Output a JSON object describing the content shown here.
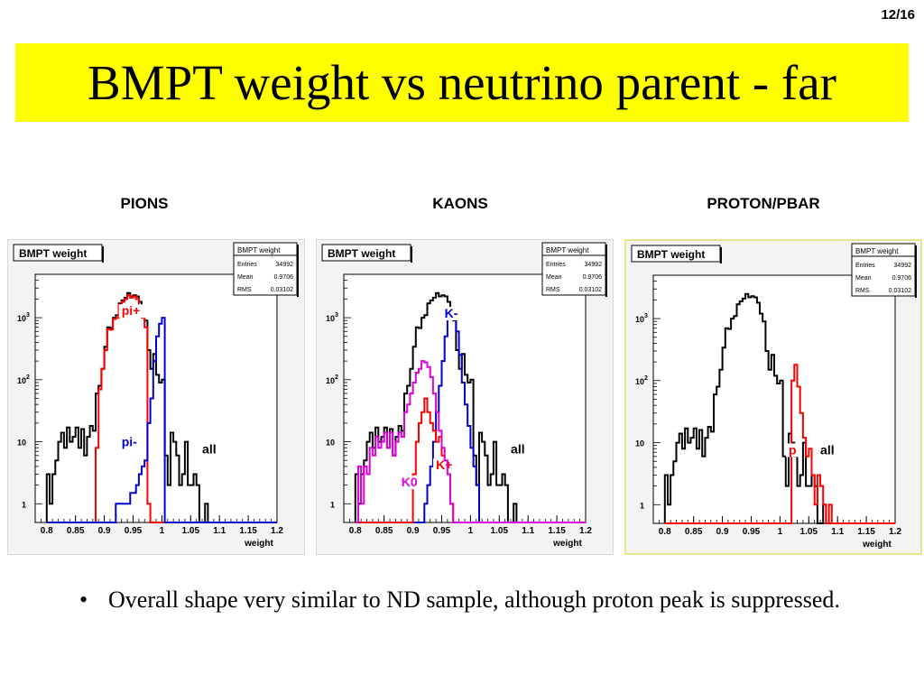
{
  "page": {
    "number": "12/16"
  },
  "title": "BMPT weight vs neutrino parent - far",
  "sections": [
    {
      "label": "PIONS"
    },
    {
      "label": "KAONS"
    },
    {
      "label": "PROTON/PBAR"
    }
  ],
  "bullet": {
    "mark": "•",
    "text": "Overall shape very similar to ND sample, although proton peak is suppressed."
  },
  "colors": {
    "all": "#000000",
    "pi_plus": "#ff0000",
    "pi_minus": "#0000cc",
    "k_minus": "#0000cc",
    "k_plus": "#ff0000",
    "k0": "#dd00dd",
    "p": "#ff0000",
    "title_bg": "#ffff00"
  },
  "chart_data": [
    {
      "type": "histogram",
      "title": "BMPT weight",
      "xlabel": "weight",
      "xlim": [
        0.78,
        1.2
      ],
      "ylim": [
        0.5,
        5000
      ],
      "yscale": "log",
      "xticks": [
        "0.8",
        "0.85",
        "0.9",
        "0.95",
        "1",
        "1.05",
        "1.1",
        "1.15",
        "1.2"
      ],
      "xtick_values": [
        0.8,
        0.85,
        0.9,
        0.95,
        1.0,
        1.05,
        1.1,
        1.15,
        1.2
      ],
      "yticks": [
        {
          "v": 1,
          "exp": ""
        },
        {
          "v": 10,
          "exp": ""
        },
        {
          "v": 100,
          "exp": "2"
        },
        {
          "v": 1000,
          "exp": "3"
        }
      ],
      "stats": {
        "name": "BMPT weight",
        "rows": [
          [
            "Entries",
            "34992"
          ],
          [
            "Mean",
            "0.9706"
          ],
          [
            "RMS",
            "0.03102"
          ]
        ]
      },
      "bin_start": 0.8,
      "bin_width": 0.005,
      "series": [
        {
          "name": "all",
          "label": "all",
          "color": "#000000",
          "label_at": [
            1.07,
            6.5
          ],
          "values": [
            3,
            1,
            3,
            5,
            10,
            14,
            8,
            17,
            10,
            12,
            17,
            8,
            16,
            6,
            12,
            18,
            15,
            60,
            80,
            150,
            340,
            700,
            680,
            1000,
            1100,
            1700,
            1900,
            2100,
            2500,
            2200,
            2300,
            2200,
            1800,
            1200,
            900,
            300,
            150,
            260,
            120,
            90,
            100,
            6,
            2,
            14,
            10,
            6,
            2,
            3,
            10,
            2,
            2,
            3,
            2,
            0,
            0,
            1,
            0,
            0,
            0,
            0,
            0,
            0,
            0,
            0,
            0,
            0,
            0,
            0,
            0,
            0,
            0,
            0,
            0,
            0,
            0,
            0,
            0,
            0,
            0,
            0,
            0,
            0
          ]
        },
        {
          "name": "pi+",
          "label": "pi+",
          "color": "#ff0000",
          "label_at": [
            0.93,
            1100
          ],
          "values": [
            0,
            0,
            0,
            0,
            0,
            0,
            0,
            0,
            0,
            0,
            0,
            0,
            0,
            0,
            0,
            0,
            0,
            8,
            70,
            150,
            300,
            650,
            640,
            950,
            1000,
            1600,
            1800,
            2000,
            2300,
            2100,
            2200,
            2000,
            1500,
            1000,
            700,
            1,
            0,
            0,
            0,
            0,
            0,
            0,
            0,
            0,
            0,
            0,
            0,
            0,
            0,
            0,
            0,
            0,
            0,
            0,
            0,
            0,
            0,
            0,
            0,
            0,
            0,
            0,
            0,
            0,
            0,
            0,
            0,
            0,
            0,
            0,
            0,
            0,
            0,
            0,
            0,
            0,
            0,
            0,
            0,
            0,
            0,
            0
          ]
        },
        {
          "name": "pi-",
          "label": "pi-",
          "color": "#0000cc",
          "label_at": [
            0.93,
            8.5
          ],
          "values": [
            0,
            0,
            0,
            0,
            0,
            0,
            0,
            0,
            0,
            0,
            0,
            0,
            0,
            0,
            0,
            0,
            0,
            0,
            0,
            0,
            0,
            0,
            0,
            0,
            1,
            1,
            1,
            1,
            1,
            1.5,
            1.5,
            2,
            3,
            4,
            5,
            20,
            50,
            200,
            500,
            800,
            1000,
            0,
            0,
            0,
            0,
            0,
            0,
            0,
            0,
            0,
            0,
            0,
            0,
            0,
            0,
            0,
            0,
            0,
            0,
            0,
            0,
            0,
            0,
            0,
            0,
            0,
            0,
            0,
            0,
            0,
            0,
            0,
            0,
            0,
            0,
            0,
            0,
            0,
            0,
            0,
            0,
            0,
            0,
            0
          ]
        }
      ]
    },
    {
      "type": "histogram",
      "title": "BMPT weight",
      "xlabel": "weight",
      "xlim": [
        0.78,
        1.2
      ],
      "ylim": [
        0.5,
        5000
      ],
      "yscale": "log",
      "xticks": [
        "0.8",
        "0.85",
        "0.9",
        "0.95",
        "1",
        "1.05",
        "1.1",
        "1.15",
        "1.2"
      ],
      "xtick_values": [
        0.8,
        0.85,
        0.9,
        0.95,
        1.0,
        1.05,
        1.1,
        1.15,
        1.2
      ],
      "yticks": [
        {
          "v": 1,
          "exp": ""
        },
        {
          "v": 10,
          "exp": ""
        },
        {
          "v": 100,
          "exp": "2"
        },
        {
          "v": 1000,
          "exp": "3"
        }
      ],
      "stats": {
        "name": "BMPT weight",
        "rows": [
          [
            "Entries",
            "34992"
          ],
          [
            "Mean",
            "0.9706"
          ],
          [
            "RMS",
            "0.03102"
          ]
        ]
      },
      "bin_start": 0.8,
      "bin_width": 0.005,
      "series": [
        {
          "name": "all",
          "label": "all",
          "color": "#000000",
          "label_at": [
            1.07,
            6.5
          ],
          "values": [
            3,
            1,
            3,
            5,
            10,
            14,
            8,
            17,
            10,
            12,
            17,
            8,
            16,
            6,
            12,
            18,
            15,
            60,
            80,
            150,
            340,
            700,
            680,
            1000,
            1100,
            1700,
            1900,
            2100,
            2500,
            2200,
            2300,
            2200,
            1800,
            1200,
            900,
            300,
            150,
            260,
            120,
            90,
            100,
            6,
            2,
            14,
            10,
            6,
            2,
            3,
            10,
            2,
            2,
            3,
            2,
            0,
            0,
            1,
            0,
            0,
            0,
            0,
            0,
            0,
            0,
            0,
            0,
            0,
            0,
            0,
            0,
            0,
            0,
            0,
            0,
            0,
            0,
            0,
            0,
            0,
            0,
            0,
            0,
            0,
            0
          ]
        },
        {
          "name": "K-",
          "label": "K-",
          "color": "#0000cc",
          "label_at": [
            0.955,
            1000
          ],
          "values": [
            0,
            0,
            0,
            0,
            0,
            0,
            0,
            0,
            0,
            0,
            0,
            0,
            0,
            0,
            0,
            0,
            0,
            0,
            0,
            0,
            0,
            0,
            0,
            0,
            1,
            2,
            4,
            10,
            30,
            80,
            200,
            500,
            1000,
            1300,
            1100,
            600,
            250,
            90,
            40,
            18,
            8,
            4,
            2,
            0,
            0,
            0,
            0,
            0,
            0,
            0,
            0,
            0,
            0,
            0,
            0,
            0,
            0,
            0,
            0,
            0,
            0,
            0,
            0,
            0,
            0,
            0,
            0,
            0,
            0,
            0,
            0,
            0,
            0,
            0,
            0,
            0,
            0,
            0,
            0,
            0,
            0,
            0
          ]
        },
        {
          "name": "K+",
          "label": "K+",
          "color": "#ff0000",
          "label_at": [
            0.94,
            3.6
          ],
          "values": [
            0,
            0,
            0,
            0,
            0,
            0,
            0,
            0,
            0,
            0,
            0,
            0,
            0,
            0,
            0,
            0,
            0,
            0,
            0,
            0,
            3,
            10,
            20,
            30,
            50,
            30,
            20,
            15,
            10,
            12,
            6,
            4,
            3,
            1,
            0,
            0,
            0,
            0,
            0,
            0,
            0,
            0,
            0,
            0,
            0,
            0,
            0,
            0,
            0,
            0,
            0,
            0,
            0,
            0,
            0,
            0,
            0,
            0,
            0,
            0,
            0,
            0,
            0,
            0,
            0,
            0,
            0,
            0,
            0,
            0,
            0,
            0,
            0,
            0,
            0,
            0,
            0,
            0,
            0,
            0,
            0,
            0
          ]
        },
        {
          "name": "K0",
          "label": "K0",
          "color": "#dd00dd",
          "label_at": [
            0.88,
            1.9
          ],
          "values": [
            0,
            4,
            1,
            4,
            3,
            8,
            6,
            12,
            8,
            10,
            14,
            8,
            14,
            6,
            10,
            14,
            12,
            30,
            40,
            60,
            90,
            130,
            150,
            200,
            190,
            160,
            110,
            60,
            30,
            15,
            8,
            5,
            3,
            1,
            0,
            0,
            0,
            0,
            0,
            0,
            0,
            0,
            0,
            0,
            0,
            0,
            0,
            0,
            0,
            0,
            0,
            0,
            0,
            0,
            0,
            0,
            0,
            0,
            0,
            0,
            0,
            0,
            0,
            0,
            0,
            0,
            0,
            0,
            0,
            0,
            0,
            0,
            0,
            0,
            0,
            0,
            0,
            0,
            0,
            0,
            0,
            0
          ]
        }
      ]
    },
    {
      "type": "histogram",
      "title": "BMPT weight",
      "xlabel": "weight",
      "xlim": [
        0.78,
        1.2
      ],
      "ylim": [
        0.5,
        5000
      ],
      "yscale": "log",
      "xticks": [
        "0.8",
        "0.85",
        "0.9",
        "0.95",
        "1",
        "1.05",
        "1.1",
        "1.15",
        "1.2"
      ],
      "xtick_values": [
        0.8,
        0.85,
        0.9,
        0.95,
        1.0,
        1.05,
        1.1,
        1.15,
        1.2
      ],
      "yticks": [
        {
          "v": 1,
          "exp": ""
        },
        {
          "v": 10,
          "exp": ""
        },
        {
          "v": 100,
          "exp": "2"
        },
        {
          "v": 1000,
          "exp": "3"
        }
      ],
      "stats": {
        "name": "BMPT weight",
        "rows": [
          [
            "Entries",
            "34992"
          ],
          [
            "Mean",
            "0.9706"
          ],
          [
            "RMS",
            "0.03102"
          ]
        ]
      },
      "bin_start": 0.8,
      "bin_width": 0.005,
      "series": [
        {
          "name": "all",
          "label": "all",
          "color": "#000000",
          "label_at": [
            1.07,
            6.5
          ],
          "values": [
            3,
            1,
            3,
            5,
            10,
            14,
            8,
            17,
            10,
            12,
            17,
            8,
            16,
            6,
            12,
            18,
            15,
            60,
            80,
            150,
            340,
            700,
            680,
            1000,
            1100,
            1700,
            1900,
            2100,
            2500,
            2200,
            2300,
            2200,
            1800,
            1200,
            900,
            300,
            150,
            260,
            120,
            90,
            100,
            6,
            2,
            14,
            10,
            6,
            2,
            3,
            10,
            2,
            2,
            3,
            2,
            0,
            0,
            1,
            0,
            0,
            0,
            0,
            0,
            0,
            0,
            0,
            0,
            0,
            0,
            0,
            0,
            0,
            0,
            0,
            0,
            0,
            0,
            0,
            0,
            0,
            0,
            0,
            0,
            0,
            0
          ]
        },
        {
          "name": "p",
          "label": "p",
          "color": "#ff0000",
          "label_at": [
            1.015,
            6.5
          ],
          "values": [
            0,
            0,
            0,
            0,
            0,
            0,
            0,
            0,
            0,
            0,
            0,
            0,
            0,
            0,
            0,
            0,
            0,
            0,
            0,
            0,
            0,
            0,
            0,
            0,
            0,
            0,
            0,
            0,
            0,
            0,
            0,
            0,
            0,
            0,
            0,
            0,
            0,
            0,
            0,
            0,
            0,
            0,
            0,
            0,
            100,
            180,
            80,
            30,
            12,
            6,
            8,
            3,
            1,
            3,
            2,
            1,
            0,
            1,
            0,
            0,
            0,
            0,
            0,
            0,
            0,
            0,
            0,
            0,
            0,
            0,
            0,
            0,
            0,
            0,
            0,
            0,
            0,
            0,
            0,
            0,
            0,
            0
          ]
        }
      ]
    }
  ]
}
